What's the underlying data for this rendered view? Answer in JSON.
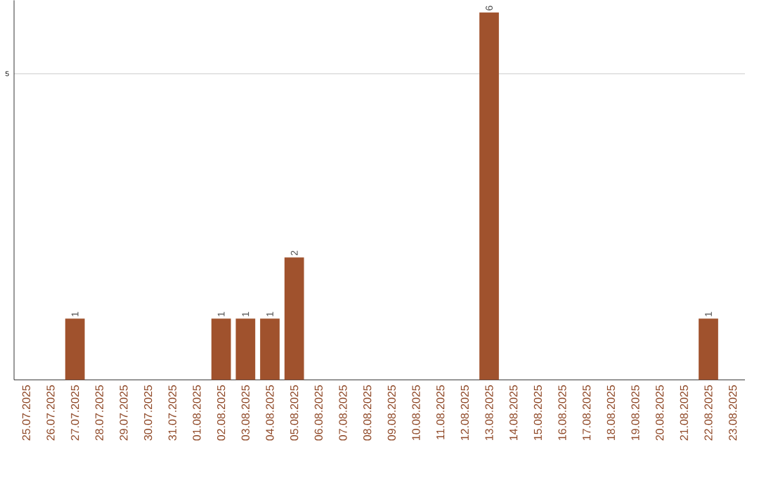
{
  "chart_data": {
    "type": "bar",
    "categories": [
      "25.07.2025",
      "26.07.2025",
      "27.07.2025",
      "28.07.2025",
      "29.07.2025",
      "30.07.2025",
      "31.07.2025",
      "01.08.2025",
      "02.08.2025",
      "03.08.2025",
      "04.08.2025",
      "05.08.2025",
      "06.08.2025",
      "07.08.2025",
      "08.08.2025",
      "09.08.2025",
      "10.08.2025",
      "11.08.2025",
      "12.08.2025",
      "13.08.2025",
      "14.08.2025",
      "15.08.2025",
      "16.08.2025",
      "17.08.2025",
      "18.08.2025",
      "19.08.2025",
      "20.08.2025",
      "21.08.2025",
      "22.08.2025",
      "23.08.2025"
    ],
    "values": [
      0,
      0,
      1,
      0,
      0,
      0,
      0,
      0,
      1,
      1,
      1,
      2,
      0,
      0,
      0,
      0,
      0,
      0,
      0,
      6,
      0,
      0,
      0,
      0,
      0,
      0,
      0,
      0,
      1,
      0
    ],
    "value_labels": [
      null,
      null,
      "1",
      null,
      null,
      null,
      null,
      null,
      "1",
      "1",
      "1",
      "2",
      null,
      null,
      null,
      null,
      null,
      null,
      null,
      "6",
      null,
      null,
      null,
      null,
      null,
      null,
      null,
      null,
      "1",
      null
    ],
    "color": "#a0522d",
    "ylim": [
      0,
      6.2
    ],
    "yticks": [
      5
    ],
    "grid": "y"
  }
}
